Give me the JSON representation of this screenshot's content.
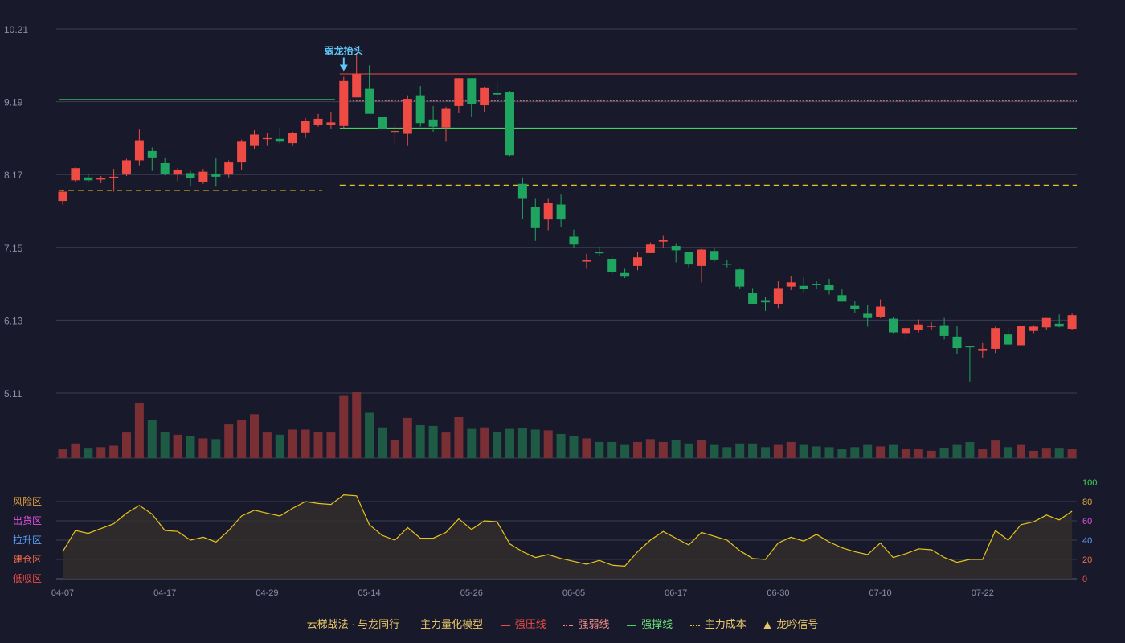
{
  "colors": {
    "bg": "#181a2c",
    "grid": "#3a3d52",
    "up": "#ef4b45",
    "down": "#1fa55f",
    "vol_up": "#7a2f34",
    "vol_down": "#1f5a45",
    "text": "#8d90a6",
    "yellow": "#e8c41a",
    "pressure": "#ef4b45",
    "weak": "#f08a8a",
    "support": "#46d15e",
    "cost": "#e8c41a",
    "signal_text": "#5fc7f5",
    "osc_fill": "#332e2c"
  },
  "chart_data": {
    "type": "candlestick",
    "price_axis": {
      "ticks": [
        10.21,
        9.19,
        8.17,
        7.15,
        6.13,
        5.11
      ],
      "range": [
        5.11,
        10.21
      ]
    },
    "x_labels": [
      {
        "i": 0,
        "label": "04-07"
      },
      {
        "i": 8,
        "label": "04-17"
      },
      {
        "i": 16,
        "label": "04-29"
      },
      {
        "i": 24,
        "label": "05-14"
      },
      {
        "i": 32,
        "label": "05-26"
      },
      {
        "i": 40,
        "label": "06-05"
      },
      {
        "i": 48,
        "label": "06-17"
      },
      {
        "i": 56,
        "label": "06-30"
      },
      {
        "i": 64,
        "label": "07-10"
      },
      {
        "i": 72,
        "label": "07-22"
      }
    ],
    "candles": [
      [
        7.8,
        7.93,
        7.75,
        7.95
      ],
      [
        8.09,
        8.26,
        8.07,
        8.27
      ],
      [
        8.13,
        8.09,
        8.07,
        8.18
      ],
      [
        8.1,
        8.12,
        8.05,
        8.15
      ],
      [
        8.12,
        8.14,
        7.93,
        8.25
      ],
      [
        8.17,
        8.37,
        8.15,
        8.39
      ],
      [
        8.37,
        8.65,
        8.3,
        8.8
      ],
      [
        8.5,
        8.41,
        8.22,
        8.55
      ],
      [
        8.33,
        8.18,
        8.16,
        8.4
      ],
      [
        8.17,
        8.24,
        8.08,
        8.26
      ],
      [
        8.19,
        8.12,
        8.0,
        8.22
      ],
      [
        8.06,
        8.21,
        8.04,
        8.25
      ],
      [
        8.18,
        8.14,
        8.0,
        8.4
      ],
      [
        8.17,
        8.34,
        8.13,
        8.37
      ],
      [
        8.34,
        8.63,
        8.23,
        8.66
      ],
      [
        8.57,
        8.73,
        8.53,
        8.79
      ],
      [
        8.67,
        8.68,
        8.57,
        8.75
      ],
      [
        8.67,
        8.63,
        8.6,
        8.82
      ],
      [
        8.61,
        8.75,
        8.57,
        8.77
      ],
      [
        8.76,
        8.92,
        8.68,
        8.96
      ],
      [
        8.86,
        8.95,
        8.84,
        9.02
      ],
      [
        8.87,
        8.9,
        8.81,
        9.05
      ],
      [
        8.85,
        9.48,
        8.82,
        9.54
      ],
      [
        9.25,
        9.58,
        9.25,
        9.86
      ],
      [
        9.37,
        9.02,
        9.02,
        9.7
      ],
      [
        8.98,
        8.81,
        8.7,
        9.02
      ],
      [
        8.77,
        8.78,
        8.58,
        8.88
      ],
      [
        8.74,
        9.23,
        8.57,
        9.28
      ],
      [
        9.28,
        8.89,
        8.84,
        9.41
      ],
      [
        8.94,
        8.84,
        8.77,
        9.13
      ],
      [
        8.83,
        9.1,
        8.63,
        9.12
      ],
      [
        9.13,
        9.52,
        9.03,
        9.52
      ],
      [
        9.52,
        9.16,
        8.98,
        9.52
      ],
      [
        9.14,
        9.39,
        9.05,
        9.4
      ],
      [
        9.31,
        9.29,
        9.17,
        9.47
      ],
      [
        9.32,
        8.44,
        8.43,
        9.34
      ],
      [
        8.04,
        7.84,
        7.55,
        8.13
      ],
      [
        7.72,
        7.42,
        7.24,
        7.84
      ],
      [
        7.54,
        7.77,
        7.39,
        7.84
      ],
      [
        7.75,
        7.54,
        7.43,
        7.9
      ],
      [
        7.3,
        7.19,
        7.14,
        7.4
      ],
      [
        6.95,
        6.97,
        6.85,
        7.06
      ],
      [
        7.08,
        7.07,
        7.02,
        7.16
      ],
      [
        6.99,
        6.81,
        6.77,
        7.02
      ],
      [
        6.79,
        6.74,
        6.72,
        6.85
      ],
      [
        6.89,
        7.01,
        6.83,
        7.08
      ],
      [
        7.07,
        7.19,
        7.07,
        7.22
      ],
      [
        7.23,
        7.26,
        7.15,
        7.31
      ],
      [
        7.17,
        7.11,
        6.94,
        7.21
      ],
      [
        7.08,
        6.91,
        6.87,
        7.08
      ],
      [
        6.89,
        7.12,
        6.66,
        7.13
      ],
      [
        7.1,
        6.98,
        6.95,
        7.14
      ],
      [
        6.92,
        6.91,
        6.87,
        6.97
      ],
      [
        6.84,
        6.6,
        6.57,
        6.85
      ],
      [
        6.51,
        6.36,
        6.36,
        6.58
      ],
      [
        6.41,
        6.38,
        6.26,
        6.45
      ],
      [
        6.36,
        6.58,
        6.3,
        6.68
      ],
      [
        6.6,
        6.66,
        6.55,
        6.75
      ],
      [
        6.61,
        6.57,
        6.52,
        6.73
      ],
      [
        6.64,
        6.62,
        6.57,
        6.68
      ],
      [
        6.63,
        6.55,
        6.49,
        6.71
      ],
      [
        6.48,
        6.39,
        6.39,
        6.56
      ],
      [
        6.33,
        6.29,
        6.23,
        6.4
      ],
      [
        6.22,
        6.16,
        6.04,
        6.34
      ],
      [
        6.18,
        6.32,
        6.16,
        6.42
      ],
      [
        6.15,
        5.96,
        5.95,
        6.17
      ],
      [
        5.95,
        6.02,
        5.86,
        6.04
      ],
      [
        5.99,
        6.07,
        5.96,
        6.14
      ],
      [
        6.05,
        6.05,
        6.0,
        6.1
      ],
      [
        6.06,
        5.91,
        5.86,
        6.16
      ],
      [
        5.9,
        5.74,
        5.66,
        6.05
      ],
      [
        5.77,
        5.75,
        5.27,
        5.77
      ],
      [
        5.7,
        5.73,
        5.6,
        5.81
      ],
      [
        5.73,
        6.02,
        5.67,
        6.04
      ],
      [
        5.93,
        5.79,
        5.77,
        6.02
      ],
      [
        5.78,
        6.05,
        5.75,
        6.06
      ],
      [
        5.98,
        6.04,
        5.95,
        6.06
      ],
      [
        6.03,
        6.16,
        6.0,
        6.16
      ],
      [
        6.08,
        6.04,
        6.03,
        6.21
      ],
      [
        6.01,
        6.2,
        6.0,
        6.22
      ]
    ],
    "volume": [
      12,
      20,
      13,
      15,
      17,
      35,
      75,
      52,
      36,
      32,
      30,
      27,
      26,
      46,
      52,
      60,
      35,
      32,
      39,
      39,
      36,
      35,
      85,
      90,
      62,
      42,
      25,
      55,
      45,
      44,
      35,
      56,
      40,
      42,
      36,
      40,
      41,
      39,
      38,
      33,
      30,
      27,
      22,
      22,
      18,
      22,
      26,
      22,
      25,
      20,
      25,
      18,
      15,
      20,
      20,
      15,
      18,
      22,
      18,
      16,
      15,
      12,
      15,
      18,
      16,
      18,
      12,
      12,
      10,
      14,
      18,
      22,
      12,
      24,
      15,
      18,
      10,
      13,
      13,
      12
    ],
    "volume_max": 90,
    "oscillator": {
      "values": [
        28,
        50,
        47,
        52,
        57,
        68,
        76,
        67,
        50,
        49,
        40,
        43,
        38,
        50,
        65,
        71,
        68,
        65,
        73,
        80,
        78,
        77,
        87,
        86,
        56,
        45,
        40,
        53,
        42,
        42,
        48,
        62,
        51,
        60,
        59,
        36,
        28,
        22,
        25,
        21,
        18,
        15,
        19,
        14,
        13,
        28,
        40,
        49,
        42,
        35,
        48,
        44,
        40,
        29,
        21,
        20,
        37,
        43,
        39,
        46,
        38,
        32,
        28,
        25,
        37,
        22,
        26,
        31,
        30,
        22,
        17,
        20,
        20,
        50,
        40,
        56,
        59,
        66,
        61,
        70
      ],
      "ticks": [
        0,
        20,
        40,
        60,
        80,
        100
      ],
      "tick_colors": [
        "#ef4b45",
        "#ef6b45",
        "#5a9cf5",
        "#e24fe0",
        "#e8a33d",
        "#3fd45a"
      ],
      "zones": [
        {
          "label": "风险区",
          "color": "#e8a33d",
          "level": 80
        },
        {
          "label": "出货区",
          "color": "#e24fe0",
          "level": 60
        },
        {
          "label": "拉升区",
          "color": "#5a9cf5",
          "level": 40
        },
        {
          "label": "建仓区",
          "color": "#ef6b45",
          "level": 20
        },
        {
          "label": "低吸区",
          "color": "#ef4b45",
          "level": 0
        }
      ]
    },
    "ref_lines": {
      "pressure": {
        "from": 22,
        "to": 79,
        "value": 9.58,
        "color": "#ef4b45"
      },
      "weak": {
        "from": 22,
        "to": 79,
        "value": 9.2,
        "color": "#f08a8a"
      },
      "support": [
        {
          "from": 0,
          "to": 21,
          "value": 9.22
        },
        {
          "from": 22,
          "to": 79,
          "value": 8.82
        }
      ],
      "cost": [
        {
          "from": 0,
          "to": 20,
          "value": 7.95
        },
        {
          "from": 22,
          "to": 79,
          "value": 8.02
        }
      ]
    },
    "signals": [
      {
        "i": 22,
        "label": "弱龙抬头"
      }
    ]
  },
  "legend": {
    "title": "云梯战法 · 与龙同行——主力量化模型",
    "items": [
      {
        "label": "强压线",
        "color": "#ef4b45",
        "style": "line"
      },
      {
        "label": "强弱线",
        "color": "#f08a8a",
        "style": "dash"
      },
      {
        "label": "强撑线",
        "color": "#46d15e",
        "style": "line"
      },
      {
        "label": "主力成本",
        "color": "#e8c41a",
        "style": "dash"
      },
      {
        "label": "龙吟信号",
        "color": "#e8c667",
        "style": "triangle"
      }
    ]
  }
}
